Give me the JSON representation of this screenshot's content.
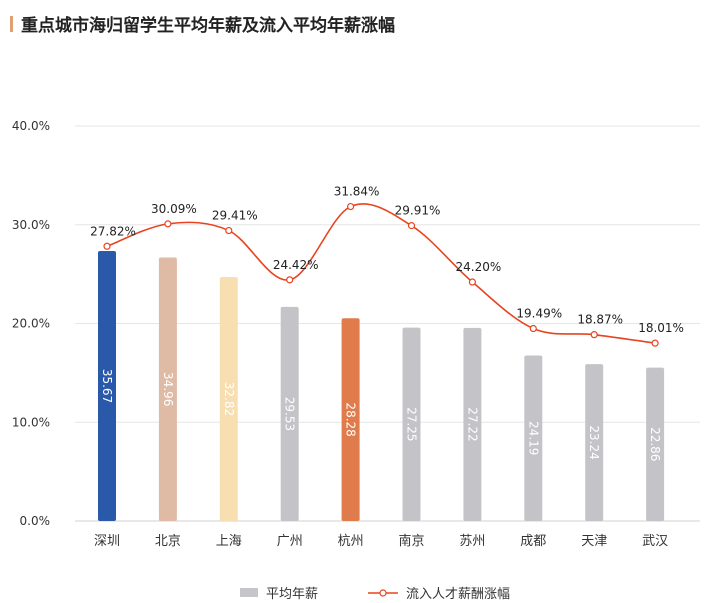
{
  "chart_data": {
    "type": "bar+line",
    "title": "重点城市海归留学生平均年薪及流入平均年薪涨幅",
    "categories": [
      "深圳",
      "北京",
      "上海",
      "广州",
      "杭州",
      "南京",
      "苏州",
      "成都",
      "天津",
      "武汉"
    ],
    "series": [
      {
        "name": "平均年薪",
        "type": "bar",
        "values": [
          35.67,
          34.96,
          32.82,
          29.53,
          28.28,
          27.25,
          27.22,
          24.19,
          23.24,
          22.86
        ],
        "colors": [
          "#2b59a9",
          "#dfbba6",
          "#f8dfb2",
          "#c4c4c8",
          "#e07b4b",
          "#c4c4c8",
          "#c4c4c8",
          "#c4c4c8",
          "#c4c4c8",
          "#c4c4c8"
        ]
      },
      {
        "name": "流入人才薪酬涨幅",
        "type": "line",
        "unit": "%",
        "values": [
          27.82,
          30.09,
          29.41,
          24.42,
          31.84,
          29.91,
          24.2,
          19.49,
          18.87,
          18.01
        ],
        "color": "#e8441f"
      }
    ],
    "yticks": [
      "0.0%",
      "10.0%",
      "20.0%",
      "30.0%",
      "40.0%"
    ],
    "ylim": [
      0,
      40
    ],
    "grid": true,
    "legend": "bottom"
  }
}
